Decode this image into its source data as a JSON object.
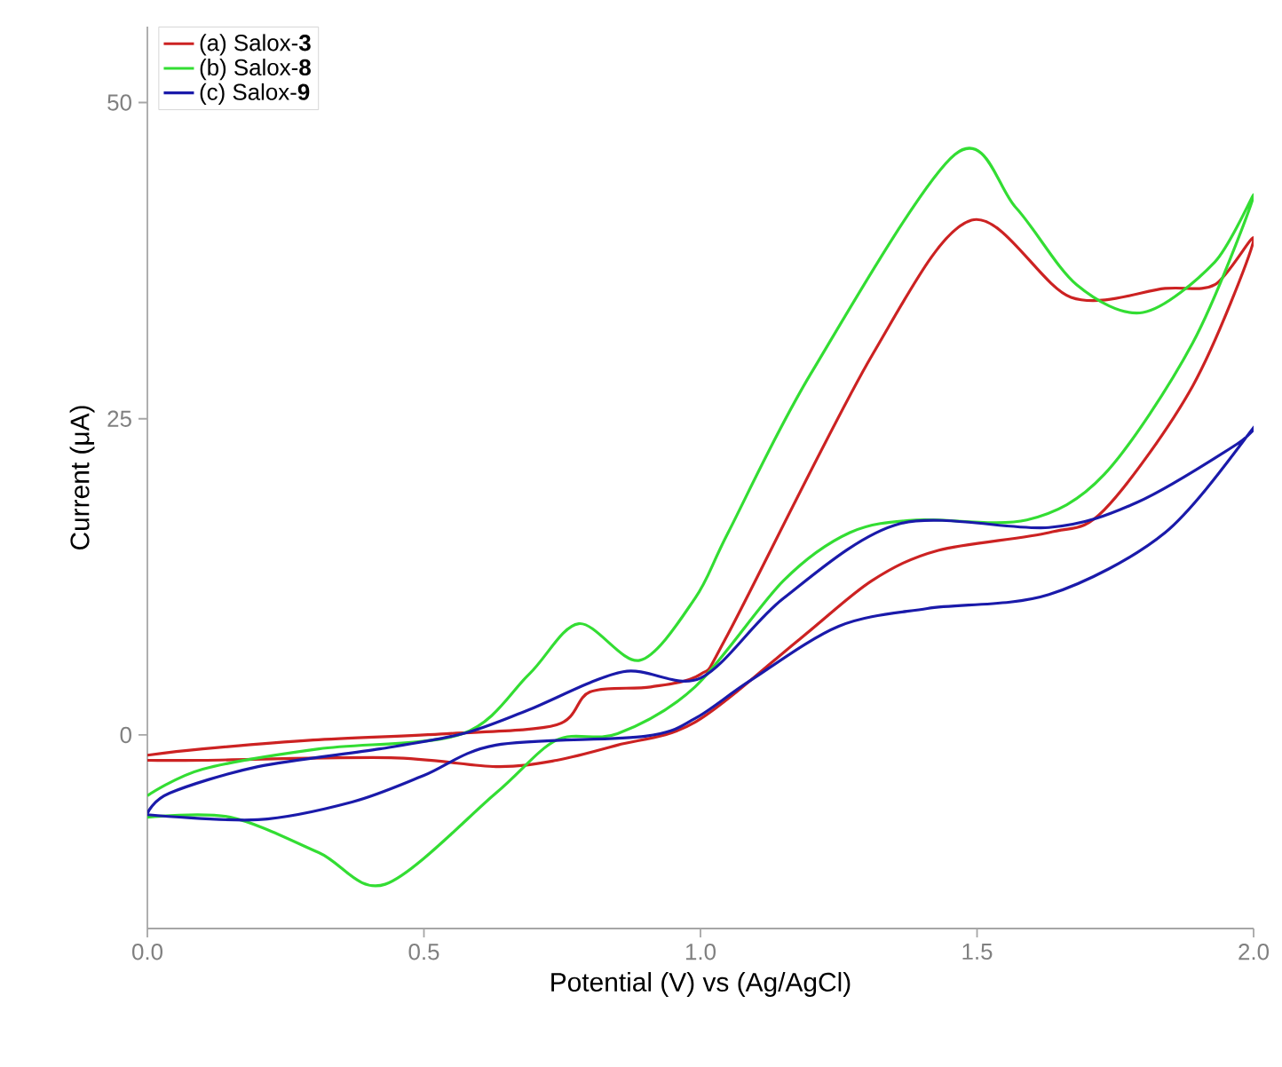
{
  "chart_data": {
    "type": "line",
    "xlabel": "Potential (V) vs (Ag/AgCl)",
    "ylabel": "Current (μA)",
    "xlim": [
      0,
      2.0
    ],
    "ylim": [
      -15.3,
      56
    ],
    "xticks": [
      {
        "value": 0,
        "label": "0.0"
      },
      {
        "value": 0.5,
        "label": "0.5"
      },
      {
        "value": 1.0,
        "label": "1.0"
      },
      {
        "value": 1.5,
        "label": "1.5"
      },
      {
        "value": 2.0,
        "label": "2.0"
      }
    ],
    "yticks": [
      0,
      25,
      50
    ],
    "legend": "top left",
    "marker": "none",
    "line_style": "solid",
    "series": [
      {
        "name": "(a) Salox-**3**",
        "color": "#cc2222",
        "x": [
          0,
          0.1,
          0.3,
          0.54,
          0.74,
          0.8,
          0.91,
          1.0,
          1.05,
          1.31,
          1.49,
          1.67,
          1.84,
          1.93,
          2.0,
          1.89,
          1.73,
          1.63,
          1.43,
          1.31,
          1.18,
          0.99,
          0.85,
          0.74,
          0.63,
          0.44,
          0.1,
          0
        ],
        "values": [
          -1.6,
          -1.1,
          -0.4,
          0.1,
          0.8,
          3.4,
          3.8,
          4.8,
          8,
          30,
          40.7,
          34.6,
          35.3,
          35.6,
          39.1,
          27.6,
          17.8,
          16,
          14.6,
          12.2,
          7.6,
          1.0,
          -0.8,
          -2,
          -2.5,
          -1.8,
          -2,
          -2
        ]
      },
      {
        "name": "(b) Salox-**8**",
        "color": "#33dd33",
        "x": [
          0,
          0.1,
          0.31,
          0.57,
          0.69,
          0.78,
          0.89,
          0.99,
          1.05,
          1.2,
          1.46,
          1.57,
          1.68,
          1.8,
          1.93,
          2.0,
          1.89,
          1.73,
          1.59,
          1.39,
          1.27,
          1.15,
          0.99,
          0.85,
          0.74,
          0.63,
          0.43,
          0.31,
          0.15,
          0
        ],
        "values": [
          -4.8,
          -2.7,
          -1.1,
          0.1,
          4.8,
          8.8,
          5.9,
          10.8,
          16,
          28.6,
          45.9,
          41.7,
          35.6,
          33.4,
          37.4,
          42.6,
          31,
          20.6,
          17,
          17,
          16,
          12.2,
          3.8,
          0.1,
          -0.4,
          -4.6,
          -11.8,
          -9.3,
          -6.5,
          -6.5
        ]
      },
      {
        "name": "(c) Salox-**9**",
        "color": "#1a1aaa",
        "x": [
          0,
          0.04,
          0.2,
          0.42,
          0.57,
          0.69,
          0.86,
          1.0,
          1.15,
          1.36,
          1.63,
          1.79,
          1.97,
          2.0,
          1.84,
          1.63,
          1.41,
          1.25,
          1.09,
          0.99,
          0.9,
          0.63,
          0.5,
          0.37,
          0.2,
          0
        ],
        "values": [
          -6.2,
          -4.6,
          -2.5,
          -1.1,
          0.1,
          2,
          5,
          4.5,
          10.8,
          16.7,
          16.4,
          18.4,
          23,
          24.3,
          16,
          11.1,
          10,
          8.6,
          4.3,
          1.3,
          -0.1,
          -0.8,
          -3.2,
          -5.3,
          -6.7,
          -6.3
        ]
      }
    ]
  }
}
